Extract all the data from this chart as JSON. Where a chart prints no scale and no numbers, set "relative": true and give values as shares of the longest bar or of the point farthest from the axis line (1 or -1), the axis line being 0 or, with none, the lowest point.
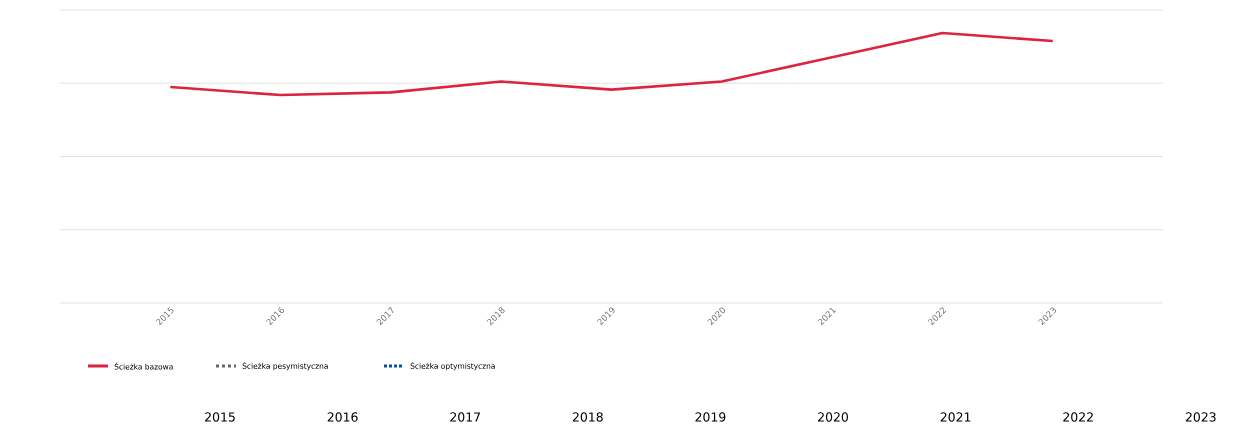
{
  "chart_data": {
    "type": "line",
    "relative": true,
    "grid": "y",
    "legend": "bottom left",
    "marker": "none",
    "categories": [
      "2015",
      "2016",
      "2017",
      "2018",
      "2019",
      "2020",
      "2021",
      "2022",
      "2023"
    ],
    "series": [
      {
        "name": "Ścieżka bazowa",
        "color": "#dc2340",
        "line_style": "solid",
        "values": [
          0.8,
          0.77,
          0.78,
          0.82,
          0.79,
          0.82,
          0.91,
          1,
          0.97
        ]
      },
      {
        "name": "Ścieżka pesymistyczna",
        "color": "#666666",
        "line_style": "dashed",
        "values": [
          null,
          null,
          null,
          null,
          null,
          null,
          null,
          null,
          null
        ]
      },
      {
        "name": "Ścieżka optymistyczna",
        "color": "#0a50a0",
        "line_style": "dotted",
        "values": [
          null,
          null,
          null,
          null,
          null,
          null,
          null,
          null,
          null
        ]
      }
    ],
    "annotations": [
      "2015",
      "2016",
      "2017",
      "2018",
      "2019",
      "2020",
      "2021",
      "2022",
      "2023"
    ]
  }
}
